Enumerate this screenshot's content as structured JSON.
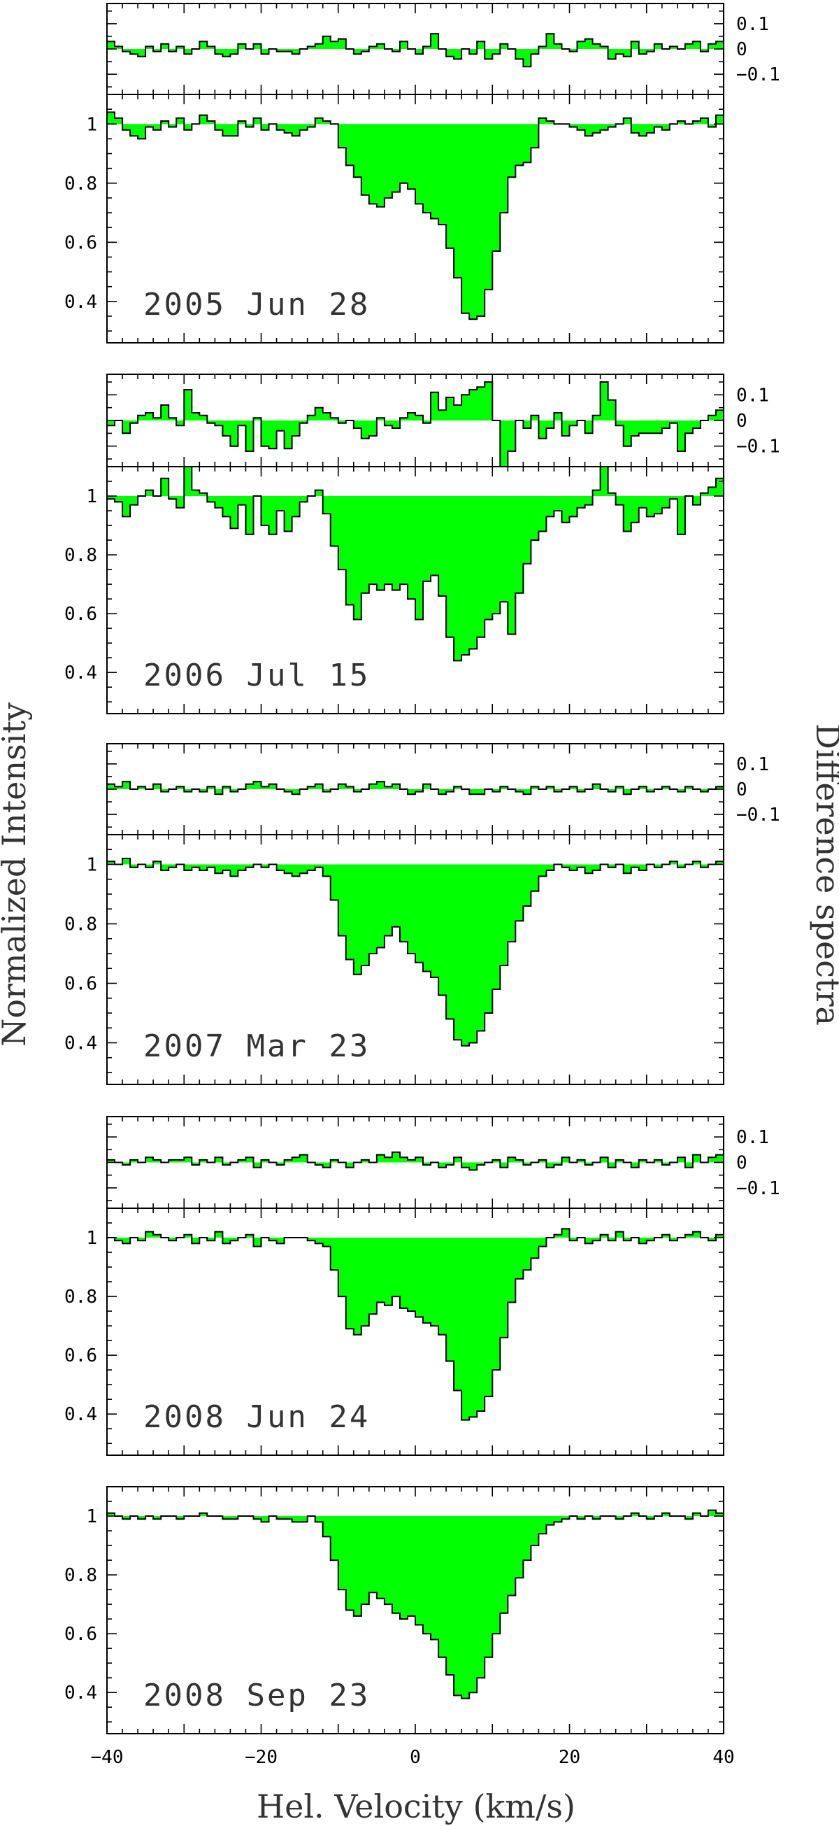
{
  "chart_data": {
    "type": "step",
    "xlabel": "Hel. Velocity (km/s)",
    "ylabel": "Normalized Intensity",
    "ylabel_right": "Difference spectra",
    "xlim": [
      -40,
      40
    ],
    "x_ticks": [
      -40,
      -20,
      0,
      20,
      40
    ],
    "x_tick_labels": [
      "−40",
      "−20",
      "0",
      "20",
      "40"
    ],
    "intensity_ylim": [
      0.26,
      1.1
    ],
    "intensity_ticks": [
      0.4,
      0.6,
      0.8,
      1
    ],
    "intensity_tick_labels": [
      "0.4",
      "0.6",
      "0.8",
      "1"
    ],
    "difference_ylim": [
      -0.18,
      0.18
    ],
    "difference_ticks": [
      -0.1,
      0,
      0.1
    ],
    "difference_tick_labels": [
      "−0.1",
      "0",
      "0.1"
    ],
    "bin_width": 1,
    "x_start": -40,
    "panels": [
      {
        "date": "2005 Jun 28",
        "intensity": [
          1.04,
          1.02,
          0.98,
          0.96,
          0.95,
          0.99,
          0.98,
          1.01,
          0.99,
          1.02,
          0.98,
          1.0,
          1.03,
          1.01,
          0.98,
          0.96,
          0.96,
          1.01,
          0.99,
          1.02,
          0.98,
          1.0,
          0.98,
          0.97,
          0.96,
          0.98,
          0.99,
          1.02,
          1.01,
          1.0,
          0.92,
          0.86,
          0.82,
          0.76,
          0.73,
          0.72,
          0.75,
          0.77,
          0.8,
          0.78,
          0.73,
          0.7,
          0.68,
          0.66,
          0.58,
          0.48,
          0.36,
          0.34,
          0.35,
          0.44,
          0.57,
          0.7,
          0.82,
          0.86,
          0.87,
          0.92,
          1.02,
          1.01,
          1.0,
          1.0,
          0.99,
          0.98,
          0.96,
          0.97,
          0.98,
          0.99,
          1.0,
          1.02,
          0.97,
          0.96,
          0.97,
          0.99,
          0.98,
          1.0,
          1.01,
          1.0,
          1.01,
          1.02,
          0.99,
          1.03
        ],
        "difference": [
          0.03,
          0.01,
          -0.01,
          -0.02,
          -0.03,
          0.01,
          -0.01,
          0.02,
          -0.01,
          0.01,
          -0.02,
          0.0,
          0.03,
          0.01,
          -0.02,
          -0.03,
          -0.02,
          0.02,
          0.0,
          0.02,
          -0.02,
          0.0,
          -0.01,
          -0.01,
          -0.02,
          0.0,
          0.01,
          0.02,
          0.05,
          0.03,
          0.04,
          0.0,
          -0.02,
          -0.01,
          0.01,
          0.02,
          0.0,
          -0.01,
          0.03,
          0.0,
          -0.02,
          0.01,
          0.06,
          0.0,
          -0.03,
          -0.04,
          0.0,
          -0.02,
          0.03,
          -0.04,
          -0.02,
          0.02,
          0.0,
          -0.04,
          -0.07,
          -0.02,
          0.01,
          0.06,
          0.02,
          0.0,
          -0.01,
          0.03,
          0.04,
          0.02,
          0.01,
          -0.04,
          -0.02,
          -0.03,
          0.03,
          -0.02,
          -0.01,
          0.02,
          0.0,
          0.01,
          0.0,
          0.02,
          0.03,
          -0.01,
          0.02,
          0.03
        ]
      },
      {
        "date": "2006 Jul 15",
        "intensity": [
          0.99,
          0.98,
          0.93,
          0.97,
          1.0,
          1.02,
          1.0,
          1.06,
          0.99,
          0.96,
          1.15,
          1.02,
          1.01,
          0.98,
          0.96,
          0.93,
          0.89,
          0.97,
          0.87,
          1.0,
          0.9,
          0.87,
          0.95,
          0.88,
          0.93,
          0.98,
          1.0,
          1.02,
          0.94,
          0.83,
          0.75,
          0.63,
          0.58,
          0.67,
          0.7,
          0.68,
          0.7,
          0.68,
          0.7,
          0.65,
          0.58,
          0.71,
          0.73,
          0.66,
          0.52,
          0.44,
          0.46,
          0.48,
          0.52,
          0.58,
          0.6,
          0.64,
          0.53,
          0.67,
          0.77,
          0.85,
          0.88,
          0.93,
          0.95,
          0.91,
          0.93,
          0.96,
          0.97,
          1.02,
          1.12,
          1.01,
          0.97,
          0.88,
          0.91,
          0.96,
          0.93,
          0.94,
          0.96,
          0.99,
          0.87,
          1.0,
          0.97,
          1.01,
          1.03,
          1.06
        ],
        "difference": [
          -0.02,
          0.0,
          -0.05,
          -0.01,
          0.02,
          0.03,
          0.01,
          0.06,
          0.01,
          -0.02,
          0.12,
          0.03,
          0.02,
          -0.01,
          -0.02,
          -0.06,
          -0.1,
          -0.02,
          -0.12,
          0.01,
          -0.1,
          -0.11,
          -0.04,
          -0.11,
          -0.06,
          -0.01,
          0.02,
          0.05,
          0.03,
          0.01,
          -0.01,
          0.0,
          -0.03,
          -0.07,
          -0.06,
          0.01,
          -0.02,
          -0.03,
          0.01,
          0.03,
          0.02,
          -0.01,
          0.11,
          0.04,
          0.09,
          0.06,
          0.1,
          0.12,
          0.13,
          0.15,
          0.0,
          -0.18,
          -0.12,
          0.0,
          -0.03,
          0.02,
          -0.07,
          -0.03,
          0.03,
          -0.06,
          -0.02,
          0.0,
          -0.05,
          0.02,
          0.15,
          0.08,
          -0.02,
          -0.1,
          -0.06,
          -0.05,
          -0.05,
          -0.05,
          -0.03,
          -0.01,
          -0.12,
          -0.05,
          -0.03,
          0.0,
          0.02,
          0.04
        ]
      },
      {
        "date": "2007 Mar 23",
        "intensity": [
          1.01,
          1.0,
          1.02,
          0.99,
          1.0,
          0.99,
          1.01,
          0.98,
          0.99,
          1.0,
          0.98,
          0.99,
          0.98,
          0.99,
          0.97,
          0.98,
          0.96,
          0.98,
          0.99,
          1.0,
          0.99,
          1.0,
          0.98,
          0.97,
          0.96,
          0.97,
          0.98,
          0.99,
          0.96,
          0.88,
          0.76,
          0.68,
          0.63,
          0.66,
          0.7,
          0.72,
          0.76,
          0.79,
          0.74,
          0.7,
          0.67,
          0.64,
          0.62,
          0.56,
          0.48,
          0.41,
          0.39,
          0.4,
          0.44,
          0.5,
          0.58,
          0.66,
          0.74,
          0.81,
          0.86,
          0.91,
          0.96,
          0.98,
          1.0,
          0.99,
          0.98,
          0.99,
          0.97,
          0.98,
          1.0,
          0.99,
          1.0,
          0.97,
          0.99,
          0.98,
          1.0,
          0.99,
          1.0,
          1.01,
          0.99,
          1.0,
          1.01,
          0.99,
          1.0,
          1.01
        ],
        "difference": [
          0.02,
          0.01,
          0.03,
          0.0,
          0.01,
          0.0,
          0.02,
          -0.01,
          0.0,
          0.01,
          -0.01,
          0.0,
          -0.01,
          0.01,
          -0.02,
          0.01,
          -0.01,
          0.0,
          0.02,
          0.03,
          0.01,
          0.02,
          0.0,
          -0.01,
          -0.02,
          0.0,
          0.01,
          0.02,
          -0.01,
          0.0,
          0.02,
          0.01,
          -0.01,
          0.0,
          0.02,
          0.03,
          0.01,
          0.02,
          0.0,
          -0.02,
          -0.01,
          0.02,
          0.0,
          -0.02,
          -0.01,
          0.01,
          0.0,
          -0.02,
          -0.02,
          0.0,
          -0.01,
          0.01,
          0.0,
          -0.01,
          -0.02,
          0.01,
          0.0,
          0.01,
          -0.01,
          0.0,
          0.01,
          -0.01,
          0.0,
          0.02,
          0.0,
          -0.01,
          0.01,
          -0.02,
          0.0,
          0.01,
          -0.01,
          0.0,
          0.01,
          0.0,
          -0.01,
          0.01,
          0.0,
          -0.01,
          0.0,
          0.01
        ]
      },
      {
        "date": "2008 Jun 24",
        "intensity": [
          1.0,
          0.99,
          0.98,
          1.0,
          0.99,
          1.02,
          1.01,
          1.0,
          0.99,
          1.0,
          1.01,
          0.98,
          1.0,
          0.99,
          1.02,
          0.98,
          0.99,
          1.0,
          1.01,
          0.97,
          1.0,
          0.99,
          0.98,
          1.0,
          1.0,
          1.0,
          0.99,
          0.98,
          0.97,
          0.89,
          0.8,
          0.69,
          0.67,
          0.7,
          0.74,
          0.78,
          0.77,
          0.8,
          0.76,
          0.75,
          0.73,
          0.71,
          0.7,
          0.67,
          0.58,
          0.48,
          0.38,
          0.39,
          0.41,
          0.46,
          0.55,
          0.66,
          0.78,
          0.86,
          0.89,
          0.93,
          0.97,
          1.0,
          1.01,
          1.03,
          0.99,
          1.0,
          0.98,
          0.99,
          1.01,
          0.99,
          1.02,
          0.99,
          1.0,
          0.98,
          0.99,
          1.0,
          1.01,
          0.99,
          1.0,
          1.01,
          1.02,
          1.0,
          0.99,
          1.01
        ],
        "difference": [
          0.01,
          0.0,
          -0.01,
          0.01,
          0.0,
          0.02,
          0.01,
          0.0,
          0.01,
          0.01,
          0.02,
          -0.01,
          0.01,
          0.0,
          0.02,
          -0.01,
          0.0,
          0.01,
          0.02,
          -0.02,
          0.01,
          0.0,
          -0.01,
          0.01,
          0.02,
          0.03,
          0.0,
          -0.01,
          -0.02,
          0.01,
          0.0,
          -0.02,
          0.0,
          0.01,
          0.0,
          0.03,
          0.02,
          0.04,
          0.02,
          0.01,
          0.02,
          -0.01,
          0.0,
          -0.02,
          -0.01,
          0.02,
          -0.02,
          -0.03,
          -0.01,
          0.0,
          0.01,
          -0.02,
          0.02,
          0.01,
          -0.01,
          0.0,
          0.01,
          -0.02,
          -0.01,
          0.02,
          0.0,
          0.01,
          -0.01,
          0.0,
          0.02,
          -0.02,
          0.01,
          0.0,
          -0.02,
          0.01,
          0.0,
          0.01,
          -0.01,
          0.0,
          0.02,
          -0.02,
          0.03,
          0.0,
          0.02,
          0.03
        ]
      },
      {
        "date": "2008 Sep 23",
        "intensity": [
          1.01,
          1.0,
          0.99,
          1.0,
          0.99,
          1.0,
          0.99,
          1.0,
          1.0,
          0.99,
          1.0,
          1.0,
          1.01,
          1.0,
          1.0,
          0.99,
          0.99,
          1.0,
          1.0,
          0.99,
          0.98,
          1.0,
          0.99,
          0.99,
          0.98,
          0.98,
          1.0,
          0.98,
          0.93,
          0.85,
          0.75,
          0.68,
          0.66,
          0.7,
          0.74,
          0.72,
          0.7,
          0.67,
          0.65,
          0.66,
          0.63,
          0.6,
          0.58,
          0.52,
          0.46,
          0.39,
          0.38,
          0.4,
          0.45,
          0.52,
          0.6,
          0.67,
          0.73,
          0.79,
          0.85,
          0.9,
          0.94,
          0.97,
          0.98,
          0.99,
          1.0,
          0.99,
          1.0,
          0.99,
          1.0,
          1.0,
          0.99,
          1.0,
          1.01,
          1.0,
          0.99,
          1.0,
          1.01,
          1.0,
          1.0,
          0.99,
          1.01,
          1.0,
          1.02,
          1.01
        ],
        "difference": null
      }
    ]
  }
}
